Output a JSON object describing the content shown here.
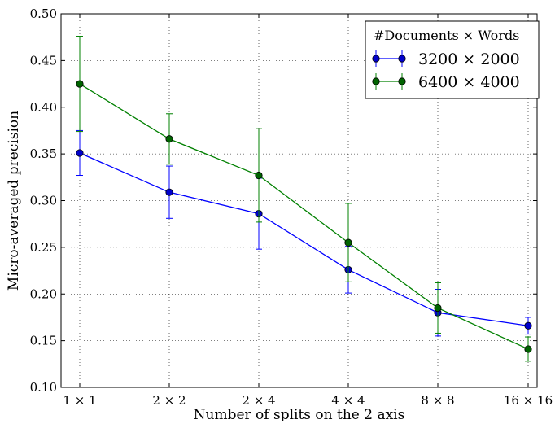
{
  "chart_data": {
    "type": "line",
    "xlabel": "Number of splits on the 2 axis",
    "ylabel": "Micro-averaged precision",
    "categories": [
      "1 × 1",
      "2 × 2",
      "2 × 4",
      "4 × 4",
      "8 × 8",
      "16 × 16"
    ],
    "ylim": [
      0.1,
      0.5
    ],
    "yticks": [
      "0.10",
      "0.15",
      "0.20",
      "0.25",
      "0.30",
      "0.35",
      "0.40",
      "0.45",
      "0.50"
    ],
    "grid": true,
    "legend": {
      "position": "top-right",
      "title": "#Documents × Words"
    },
    "series": [
      {
        "name": "3200  × 2000",
        "color": "#0000ff",
        "marker_color": "#0000cc",
        "values": [
          0.351,
          0.309,
          0.286,
          0.226,
          0.18,
          0.166
        ],
        "errors": [
          0.024,
          0.028,
          0.038,
          0.025,
          0.025,
          0.009
        ]
      },
      {
        "name": "6400  × 4000",
        "color": "#008000",
        "marker_color": "#006400",
        "values": [
          0.425,
          0.366,
          0.327,
          0.255,
          0.185,
          0.141
        ],
        "errors": [
          0.051,
          0.027,
          0.05,
          0.042,
          0.027,
          0.013
        ]
      }
    ]
  }
}
